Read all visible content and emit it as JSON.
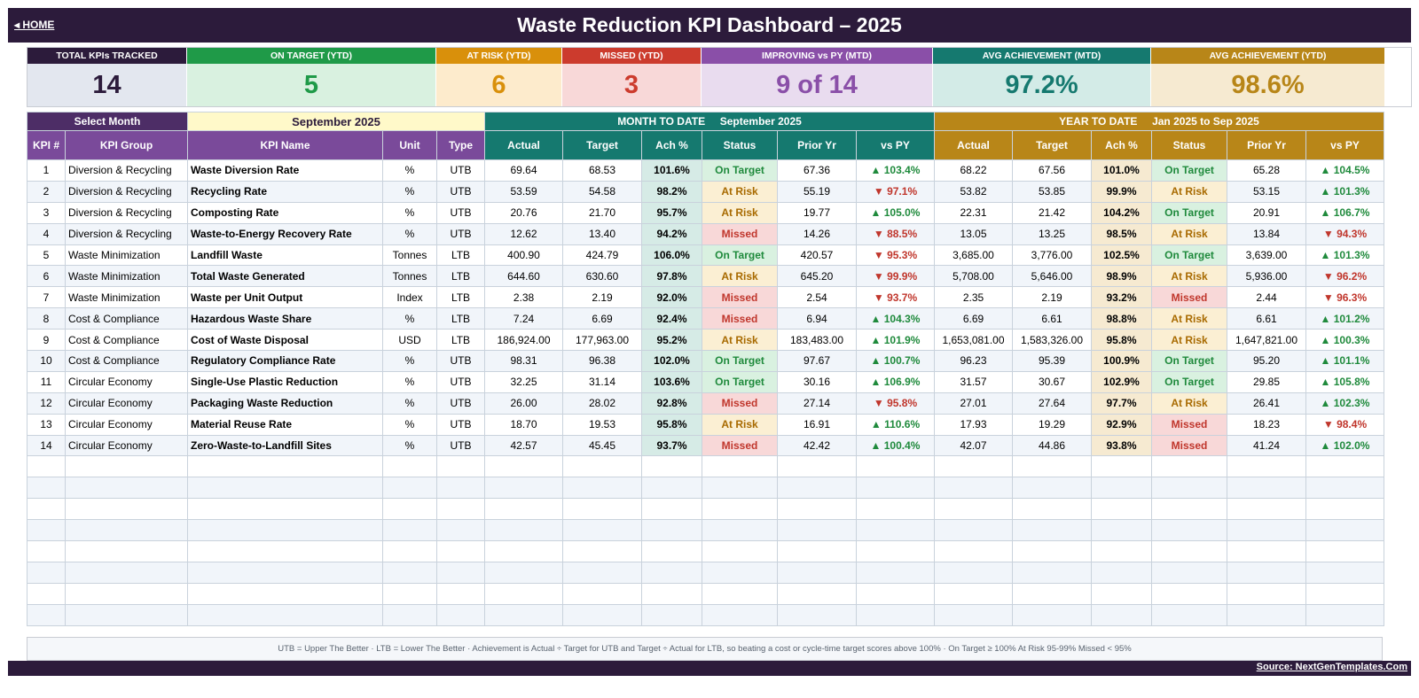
{
  "header": {
    "home_label": "◂  HOME",
    "title": "Waste Reduction KPI Dashboard   –   2025"
  },
  "kpi_cards": [
    {
      "label": "TOTAL KPIs TRACKED",
      "value": "14",
      "header_color": "#2c1b3b",
      "bg": "#e3e7ef",
      "value_color": "#2c1b3b"
    },
    {
      "label": "ON TARGET (YTD)",
      "value": "5",
      "header_color": "#1f9a48",
      "bg": "#d9f1e0",
      "value_color": "#1f9a48"
    },
    {
      "label": "AT RISK (YTD)",
      "value": "6",
      "header_color": "#d9900b",
      "bg": "#fdebcc",
      "value_color": "#d9900b"
    },
    {
      "label": "MISSED (YTD)",
      "value": "3",
      "header_color": "#cc3b2d",
      "bg": "#f8d8d8",
      "value_color": "#cc3b2d"
    },
    {
      "label": "IMPROVING vs PY (MTD)",
      "value": "9 of 14",
      "header_color": "#8a4fa8",
      "bg": "#e9dcef",
      "value_color": "#8a4fa8"
    },
    {
      "label": "AVG ACHIEVEMENT (MTD)",
      "value": "97.2%",
      "header_color": "#15796f",
      "bg": "#d3ebe7",
      "value_color": "#15796f"
    },
    {
      "label": "AVG ACHIEVEMENT (YTD)",
      "value": "98.6%",
      "header_color": "#b88618",
      "bg": "#f6ead1",
      "value_color": "#b88618"
    }
  ],
  "selector": {
    "label": "Select Month",
    "value": "September 2025"
  },
  "mtd_band": {
    "label": "MONTH TO DATE",
    "period": "September 2025"
  },
  "ytd_band": {
    "label": "YEAR TO DATE",
    "period": "Jan 2025  to  Sep 2025"
  },
  "columns": [
    "KPI #",
    "KPI Group",
    "KPI Name",
    "Unit",
    "Type",
    "Actual",
    "Target",
    "Ach %",
    "Status",
    "Prior Yr",
    "vs PY",
    "Actual",
    "Target",
    "Ach %",
    "Status",
    "Prior Yr",
    "vs PY"
  ],
  "rows": [
    [
      "1",
      "Diversion & Recycling",
      "Waste Diversion Rate",
      "%",
      "UTB",
      "69.64",
      "68.53",
      "101.6%",
      "On Target",
      "67.36",
      "▲ 103.4%",
      "68.22",
      "67.56",
      "101.0%",
      "On Target",
      "65.28",
      "▲ 104.5%"
    ],
    [
      "2",
      "Diversion & Recycling",
      "Recycling Rate",
      "%",
      "UTB",
      "53.59",
      "54.58",
      "98.2%",
      "At Risk",
      "55.19",
      "▼ 97.1%",
      "53.82",
      "53.85",
      "99.9%",
      "At Risk",
      "53.15",
      "▲ 101.3%"
    ],
    [
      "3",
      "Diversion & Recycling",
      "Composting Rate",
      "%",
      "UTB",
      "20.76",
      "21.70",
      "95.7%",
      "At Risk",
      "19.77",
      "▲ 105.0%",
      "22.31",
      "21.42",
      "104.2%",
      "On Target",
      "20.91",
      "▲ 106.7%"
    ],
    [
      "4",
      "Diversion & Recycling",
      "Waste-to-Energy Recovery Rate",
      "%",
      "UTB",
      "12.62",
      "13.40",
      "94.2%",
      "Missed",
      "14.26",
      "▼ 88.5%",
      "13.05",
      "13.25",
      "98.5%",
      "At Risk",
      "13.84",
      "▼ 94.3%"
    ],
    [
      "5",
      "Waste Minimization",
      "Landfill Waste",
      "Tonnes",
      "LTB",
      "400.90",
      "424.79",
      "106.0%",
      "On Target",
      "420.57",
      "▼ 95.3%",
      "3,685.00",
      "3,776.00",
      "102.5%",
      "On Target",
      "3,639.00",
      "▲ 101.3%"
    ],
    [
      "6",
      "Waste Minimization",
      "Total Waste Generated",
      "Tonnes",
      "LTB",
      "644.60",
      "630.60",
      "97.8%",
      "At Risk",
      "645.20",
      "▼ 99.9%",
      "5,708.00",
      "5,646.00",
      "98.9%",
      "At Risk",
      "5,936.00",
      "▼ 96.2%"
    ],
    [
      "7",
      "Waste Minimization",
      "Waste per Unit Output",
      "Index",
      "LTB",
      "2.38",
      "2.19",
      "92.0%",
      "Missed",
      "2.54",
      "▼ 93.7%",
      "2.35",
      "2.19",
      "93.2%",
      "Missed",
      "2.44",
      "▼ 96.3%"
    ],
    [
      "8",
      "Cost & Compliance",
      "Hazardous Waste Share",
      "%",
      "LTB",
      "7.24",
      "6.69",
      "92.4%",
      "Missed",
      "6.94",
      "▲ 104.3%",
      "6.69",
      "6.61",
      "98.8%",
      "At Risk",
      "6.61",
      "▲ 101.2%"
    ],
    [
      "9",
      "Cost & Compliance",
      "Cost of Waste Disposal",
      "USD",
      "LTB",
      "186,924.00",
      "177,963.00",
      "95.2%",
      "At Risk",
      "183,483.00",
      "▲ 101.9%",
      "1,653,081.00",
      "1,583,326.00",
      "95.8%",
      "At Risk",
      "1,647,821.00",
      "▲ 100.3%"
    ],
    [
      "10",
      "Cost & Compliance",
      "Regulatory Compliance Rate",
      "%",
      "UTB",
      "98.31",
      "96.38",
      "102.0%",
      "On Target",
      "97.67",
      "▲ 100.7%",
      "96.23",
      "95.39",
      "100.9%",
      "On Target",
      "95.20",
      "▲ 101.1%"
    ],
    [
      "11",
      "Circular Economy",
      "Single-Use Plastic Reduction",
      "%",
      "UTB",
      "32.25",
      "31.14",
      "103.6%",
      "On Target",
      "30.16",
      "▲ 106.9%",
      "31.57",
      "30.67",
      "102.9%",
      "On Target",
      "29.85",
      "▲ 105.8%"
    ],
    [
      "12",
      "Circular Economy",
      "Packaging Waste Reduction",
      "%",
      "UTB",
      "26.00",
      "28.02",
      "92.8%",
      "Missed",
      "27.14",
      "▼ 95.8%",
      "27.01",
      "27.64",
      "97.7%",
      "At Risk",
      "26.41",
      "▲ 102.3%"
    ],
    [
      "13",
      "Circular Economy",
      "Material Reuse Rate",
      "%",
      "UTB",
      "18.70",
      "19.53",
      "95.8%",
      "At Risk",
      "16.91",
      "▲ 110.6%",
      "17.93",
      "19.29",
      "92.9%",
      "Missed",
      "18.23",
      "▼ 98.4%"
    ],
    [
      "14",
      "Circular Economy",
      "Zero-Waste-to-Landfill Sites",
      "%",
      "UTB",
      "42.57",
      "45.45",
      "93.7%",
      "Missed",
      "42.42",
      "▲ 100.4%",
      "42.07",
      "44.86",
      "93.8%",
      "Missed",
      "41.24",
      "▲ 102.0%"
    ]
  ],
  "empty_row_count": 8,
  "legend_text": "UTB = Upper The Better    ·    LTB = Lower The Better    ·    Achievement is Actual ÷ Target for UTB and Target ÷ Actual for LTB, so beating a cost or cycle-time target scores above 100%    ·    On Target ≥ 100%     At Risk 95-99%     Missed < 95%",
  "source_label": "Source: NextGenTemplates.Com"
}
